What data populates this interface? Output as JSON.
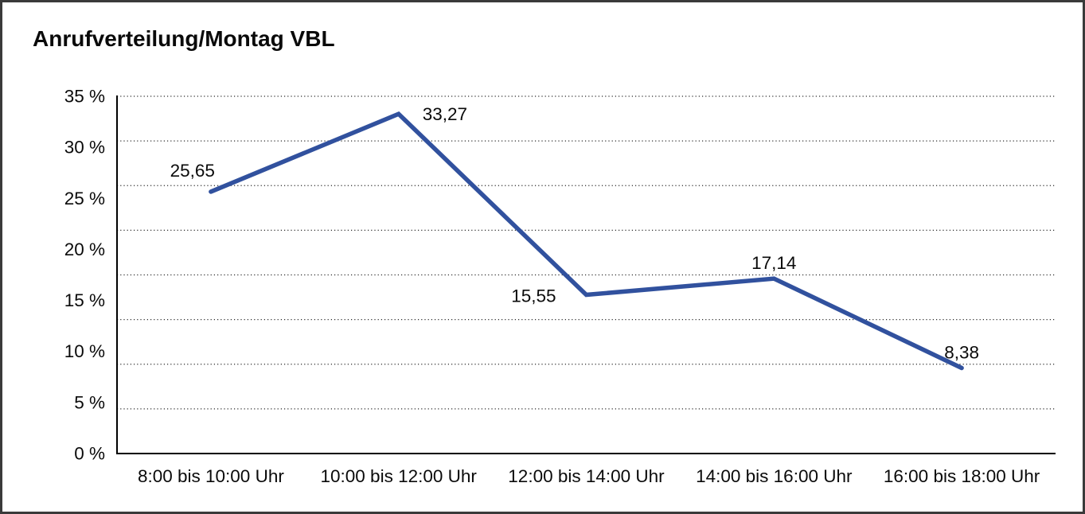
{
  "title": "Anrufverteilung/Montag VBL",
  "chart_data": {
    "type": "line",
    "title": "Anrufverteilung/Montag VBL",
    "categories": [
      "8:00 bis 10:00 Uhr",
      "10:00 bis 12:00 Uhr",
      "12:00 bis 14:00 Uhr",
      "14:00 bis 16:00 Uhr",
      "16:00 bis 18:00 Uhr"
    ],
    "values": [
      25.65,
      33.27,
      15.55,
      17.14,
      8.38
    ],
    "point_labels": [
      "25,65",
      "33,27",
      "15,55",
      "17,14",
      "8,38"
    ],
    "point_label_positions": [
      "above-left",
      "right",
      "left",
      "above",
      "above"
    ],
    "xlabel": "",
    "ylabel": "",
    "ylim": [
      0,
      35
    ],
    "y_tick_values": [
      0,
      5,
      10,
      15,
      20,
      25,
      30,
      35
    ],
    "y_tick_labels": [
      "0 %",
      "5 %",
      "10 %",
      "15 %",
      "20 %",
      "25 %",
      "30 %",
      "35 %"
    ],
    "gridlines": {
      "orientation": "horizontal",
      "style": "dotted",
      "divisions": 8,
      "color": "#2b2b2b"
    },
    "legend": "none",
    "line_color": "#31519e",
    "axis_color": "#000000",
    "text_color": "#0a0a0a",
    "background_color": "#ffffff",
    "border_color": "#3a3a3a"
  }
}
